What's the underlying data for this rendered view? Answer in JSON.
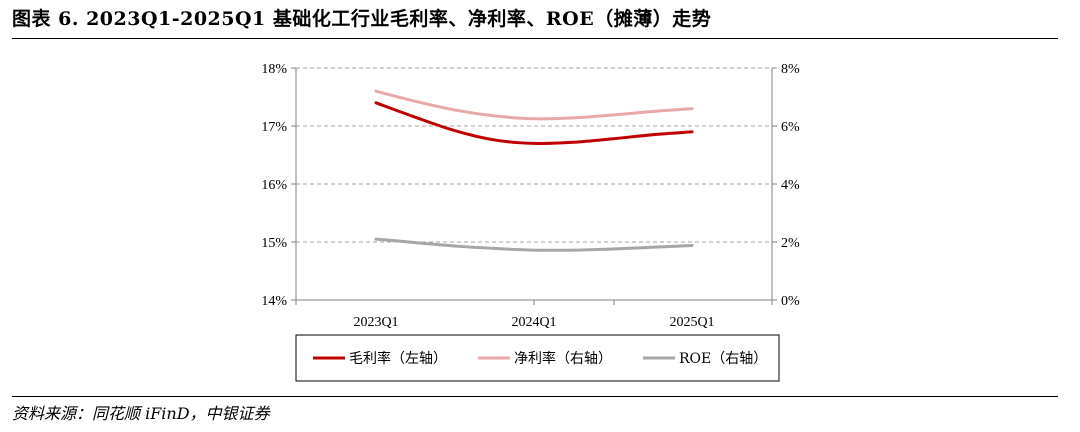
{
  "figure": {
    "title": "图表 6. 2023Q1-2025Q1 基础化工行业毛利率、净利率、ROE（摊薄）走势",
    "source": "资料来源：同花顺 iFinD，中银证券"
  },
  "colors": {
    "gross_margin": "#c00000",
    "net_margin": "#e8a8a8",
    "roe": "#a6a6a6",
    "gridline": "#a6a6a6",
    "axis": "#808080"
  },
  "chart_data": {
    "type": "line",
    "categories": [
      "2023Q1",
      "2024Q1",
      "2025Q1"
    ],
    "x": [
      0,
      1,
      2,
      3,
      4,
      5,
      6,
      7,
      8
    ],
    "x_tick_labels": [
      "2023Q1",
      "2024Q1",
      "2025Q1"
    ],
    "x_tick_positions": [
      0,
      4,
      8
    ],
    "y_left": {
      "ticks": [
        "14%",
        "15%",
        "16%",
        "17%",
        "18%"
      ],
      "ylim": [
        14,
        18
      ]
    },
    "y_right": {
      "ticks": [
        "0%",
        "2%",
        "4%",
        "6%",
        "8%"
      ],
      "ylim": [
        0,
        8
      ]
    },
    "grid": true,
    "legend_position": "bottom",
    "series": [
      {
        "name": "毛利率（左轴）",
        "axis": "left",
        "color": "#c00000",
        "values": [
          17.4,
          17.15,
          16.92,
          16.76,
          16.7,
          16.72,
          16.78,
          16.85,
          16.9
        ]
      },
      {
        "name": "净利率（右轴）",
        "axis": "right",
        "color": "#e8a8a8",
        "values": [
          7.2,
          6.85,
          6.55,
          6.35,
          6.25,
          6.28,
          6.38,
          6.5,
          6.6
        ]
      },
      {
        "name": "ROE（右轴）",
        "axis": "right",
        "color": "#a6a6a6",
        "values": [
          2.1,
          1.98,
          1.86,
          1.78,
          1.72,
          1.72,
          1.76,
          1.82,
          1.88
        ]
      }
    ]
  }
}
